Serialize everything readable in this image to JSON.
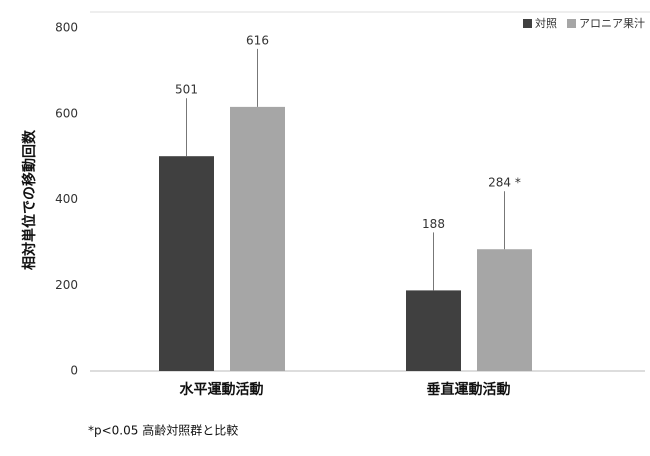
{
  "chart_data": {
    "type": "bar",
    "y_label": "相対単位での移動回数",
    "categories": [
      "水平運動活動",
      "垂直運動活動"
    ],
    "series": [
      {
        "name": "対照",
        "color": "#404040",
        "values": [
          501,
          188
        ],
        "errors": [
          157,
          159
        ],
        "value_labels": [
          "501",
          "188"
        ]
      },
      {
        "name": "アロニア果汁",
        "color": "#a6a6a6",
        "values": [
          616,
          284
        ],
        "errors": [
          168,
          168
        ],
        "value_labels": [
          "616",
          "284 *"
        ]
      }
    ],
    "ylim": [
      0,
      800
    ],
    "yticks": [
      0,
      200,
      400,
      600,
      800
    ],
    "footnote": "*p<0.05  高齢対照群と比較"
  }
}
